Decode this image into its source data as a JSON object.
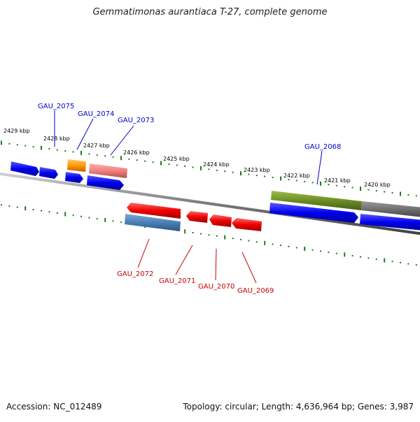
{
  "title": "Gemmatimonas aurantiaca T-27, complete genome",
  "footer": {
    "accession": "Accession: NC_012489",
    "stats": "Topology: circular; Length: 4,636,964 bp; Genes: 3,987"
  },
  "ruler": {
    "ticks": [
      "2429 kbp",
      "2428 kbp",
      "2427 kbp",
      "2426 kbp",
      "2425 kbp",
      "2424 kbp",
      "2423 kbp",
      "2422 kbp",
      "2421 kbp",
      "2420 kbp"
    ],
    "color": "#1f7a1f"
  },
  "genes_forward": [
    {
      "name": "",
      "color": "#0000ee"
    },
    {
      "name": "",
      "color": "#0000ee"
    },
    {
      "name": "GAU_2075",
      "color": "#0000ee"
    },
    {
      "name": "GAU_2074",
      "color": "#0000ee"
    },
    {
      "name": "GAU_2073",
      "color": "#0000ee"
    },
    {
      "name": "GAU_2068",
      "color": "#0000ee"
    },
    {
      "name": "",
      "color": "#0000ee"
    }
  ],
  "genes_reverse": [
    {
      "name": "GAU_2072",
      "color": "#ee0000"
    },
    {
      "name": "GAU_2071",
      "color": "#ee0000"
    },
    {
      "name": "GAU_2070",
      "color": "#ee0000"
    },
    {
      "name": "GAU_2069",
      "color": "#ee0000"
    }
  ],
  "features": [
    {
      "kind": "orange",
      "color": "#ff9900"
    },
    {
      "kind": "pink",
      "color": "#f08080"
    },
    {
      "kind": "steelblue",
      "color": "#4a7fb5"
    },
    {
      "kind": "olive",
      "color": "#6b8e23"
    },
    {
      "kind": "gray",
      "color": "#707070"
    }
  ],
  "label_colors": {
    "forward": "#0000cc",
    "reverse": "#cc0000"
  }
}
